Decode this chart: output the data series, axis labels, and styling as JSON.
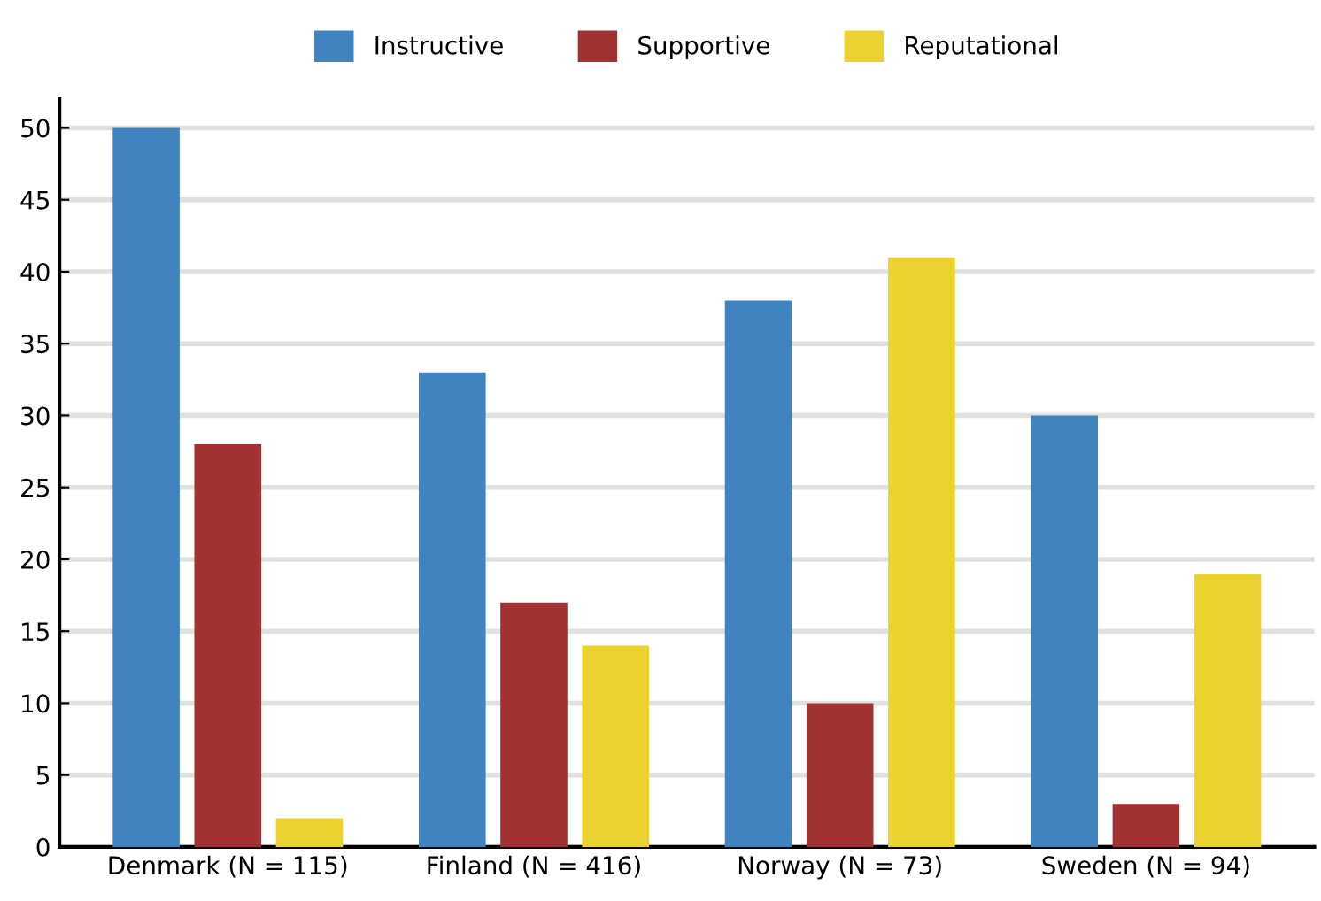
{
  "chart_data": {
    "type": "bar",
    "categories": [
      "Denmark (N = 115)",
      "Finland (N = 416)",
      "Norway (N = 73)",
      "Sweden (N = 94)"
    ],
    "series": [
      {
        "name": "Instructive",
        "color": "#3f84c0",
        "values": [
          50,
          33,
          38,
          30
        ]
      },
      {
        "name": "Supportive",
        "color": "#a23232",
        "values": [
          28,
          17,
          10,
          3
        ]
      },
      {
        "name": "Reputational",
        "color": "#ecd22f",
        "values": [
          2,
          14,
          41,
          19
        ]
      }
    ],
    "ylim": [
      0,
      52
    ],
    "yticks": [
      0,
      5,
      10,
      15,
      20,
      25,
      30,
      35,
      40,
      45,
      50
    ],
    "grid": "y",
    "legend": "top"
  }
}
